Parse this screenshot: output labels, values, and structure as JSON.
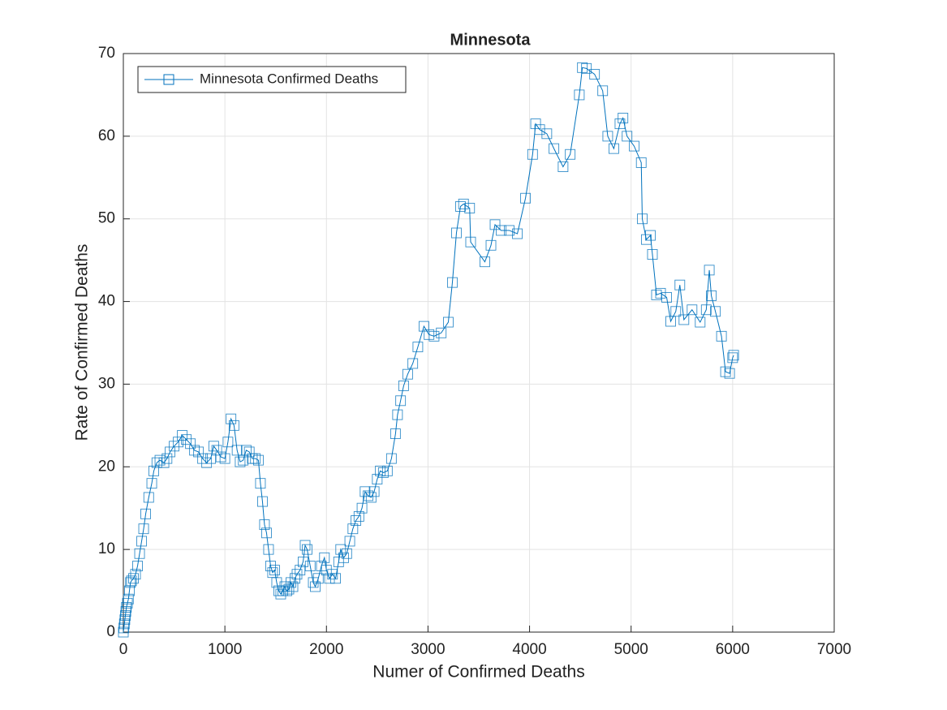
{
  "chart_data": {
    "type": "line",
    "title": "Minnesota",
    "x_label": "Numer of Confirmed Deaths",
    "y_label": "Rate of Confirmed Deaths",
    "x": [
      0,
      5,
      10,
      15,
      20,
      25,
      30,
      40,
      50,
      60,
      70,
      80,
      100,
      120,
      140,
      160,
      180,
      200,
      220,
      250,
      280,
      300,
      330,
      360,
      400,
      430,
      460,
      500,
      540,
      580,
      620,
      660,
      700,
      740,
      780,
      820,
      860,
      890,
      920,
      960,
      1000,
      1030,
      1060,
      1090,
      1120,
      1150,
      1180,
      1210,
      1240,
      1270,
      1300,
      1330,
      1350,
      1370,
      1390,
      1410,
      1430,
      1450,
      1470,
      1490,
      1510,
      1530,
      1550,
      1570,
      1590,
      1610,
      1630,
      1650,
      1670,
      1690,
      1710,
      1740,
      1770,
      1790,
      1810,
      1840,
      1870,
      1890,
      1920,
      1950,
      1980,
      2000,
      2030,
      2060,
      2090,
      2120,
      2140,
      2170,
      2200,
      2230,
      2260,
      2290,
      2320,
      2350,
      2380,
      2410,
      2440,
      2470,
      2500,
      2530,
      2560,
      2600,
      2640,
      2680,
      2700,
      2730,
      2760,
      2800,
      2850,
      2900,
      2960,
      3010,
      3060,
      3130,
      3200,
      3240,
      3280,
      3320,
      3350,
      3410,
      3420,
      3560,
      3620,
      3660,
      3720,
      3800,
      3880,
      3960,
      4030,
      4060,
      4100,
      4170,
      4240,
      4330,
      4400,
      4490,
      4520,
      4560,
      4640,
      4720,
      4770,
      4830,
      4890,
      4920,
      4960,
      5030,
      5100,
      5110,
      5150,
      5190,
      5210,
      5250,
      5290,
      5350,
      5390,
      5440,
      5480,
      5520,
      5600,
      5680,
      5740,
      5770,
      5790,
      5830,
      5890,
      5930,
      5970,
      6000,
      6010
    ],
    "series": [
      {
        "name": "Minnesota Confirmed Deaths",
        "color": "#0072bd",
        "values": [
          0,
          0.5,
          1,
          1.5,
          2,
          2.5,
          3,
          3.5,
          4,
          5,
          6,
          6.2,
          6.5,
          7,
          8,
          9.5,
          11,
          12.5,
          14.3,
          16.3,
          18,
          19.5,
          20.5,
          20.8,
          20.5,
          21,
          21.8,
          22.5,
          23,
          23.8,
          23.3,
          22.8,
          22,
          21.8,
          21,
          20.5,
          21,
          22.5,
          22,
          21.2,
          21,
          23,
          25.8,
          25,
          22,
          20.6,
          20.8,
          22,
          21.8,
          21,
          21,
          20.8,
          18,
          15.8,
          13,
          12,
          10,
          8,
          7.2,
          7.5,
          6,
          5,
          4.6,
          5,
          5.5,
          5,
          5.2,
          6,
          5.5,
          6.5,
          7,
          7.5,
          8.5,
          10.5,
          10,
          8,
          6,
          5.5,
          6.5,
          8,
          9,
          7.5,
          6.5,
          7,
          6.5,
          8.5,
          10,
          9,
          9.5,
          11,
          12.5,
          13.5,
          14,
          15,
          17,
          16.5,
          16.3,
          17,
          18.5,
          19.5,
          19.3,
          19.5,
          21,
          24,
          26.3,
          28,
          29.8,
          31.2,
          32.5,
          34.5,
          37,
          36,
          35.8,
          36.2,
          37.5,
          42.3,
          48.3,
          51.5,
          51.8,
          51.3,
          47.2,
          44.8,
          46.8,
          49.3,
          48.6,
          48.6,
          48.2,
          52.5,
          57.8,
          61.5,
          60.8,
          60.3,
          58.5,
          56.3,
          57.8,
          65,
          68.3,
          68.2,
          67.5,
          65.5,
          60,
          58.5,
          61.5,
          62.2,
          60,
          58.8,
          56.8,
          50,
          47.5,
          48,
          45.7,
          40.8,
          41,
          40.5,
          37.6,
          38.8,
          42,
          37.8,
          39,
          37.5,
          39,
          43.8,
          40.7,
          38.8,
          35.8,
          31.5,
          31.3,
          33.2,
          33.5
        ]
      }
    ],
    "xlim": [
      0,
      7000
    ],
    "xticks": [
      0,
      1000,
      2000,
      3000,
      4000,
      5000,
      6000,
      7000
    ],
    "ylim": [
      0,
      70
    ],
    "yticks": [
      0,
      10,
      20,
      30,
      40,
      50,
      60,
      70
    ],
    "grid": true,
    "legend": "top-left"
  }
}
